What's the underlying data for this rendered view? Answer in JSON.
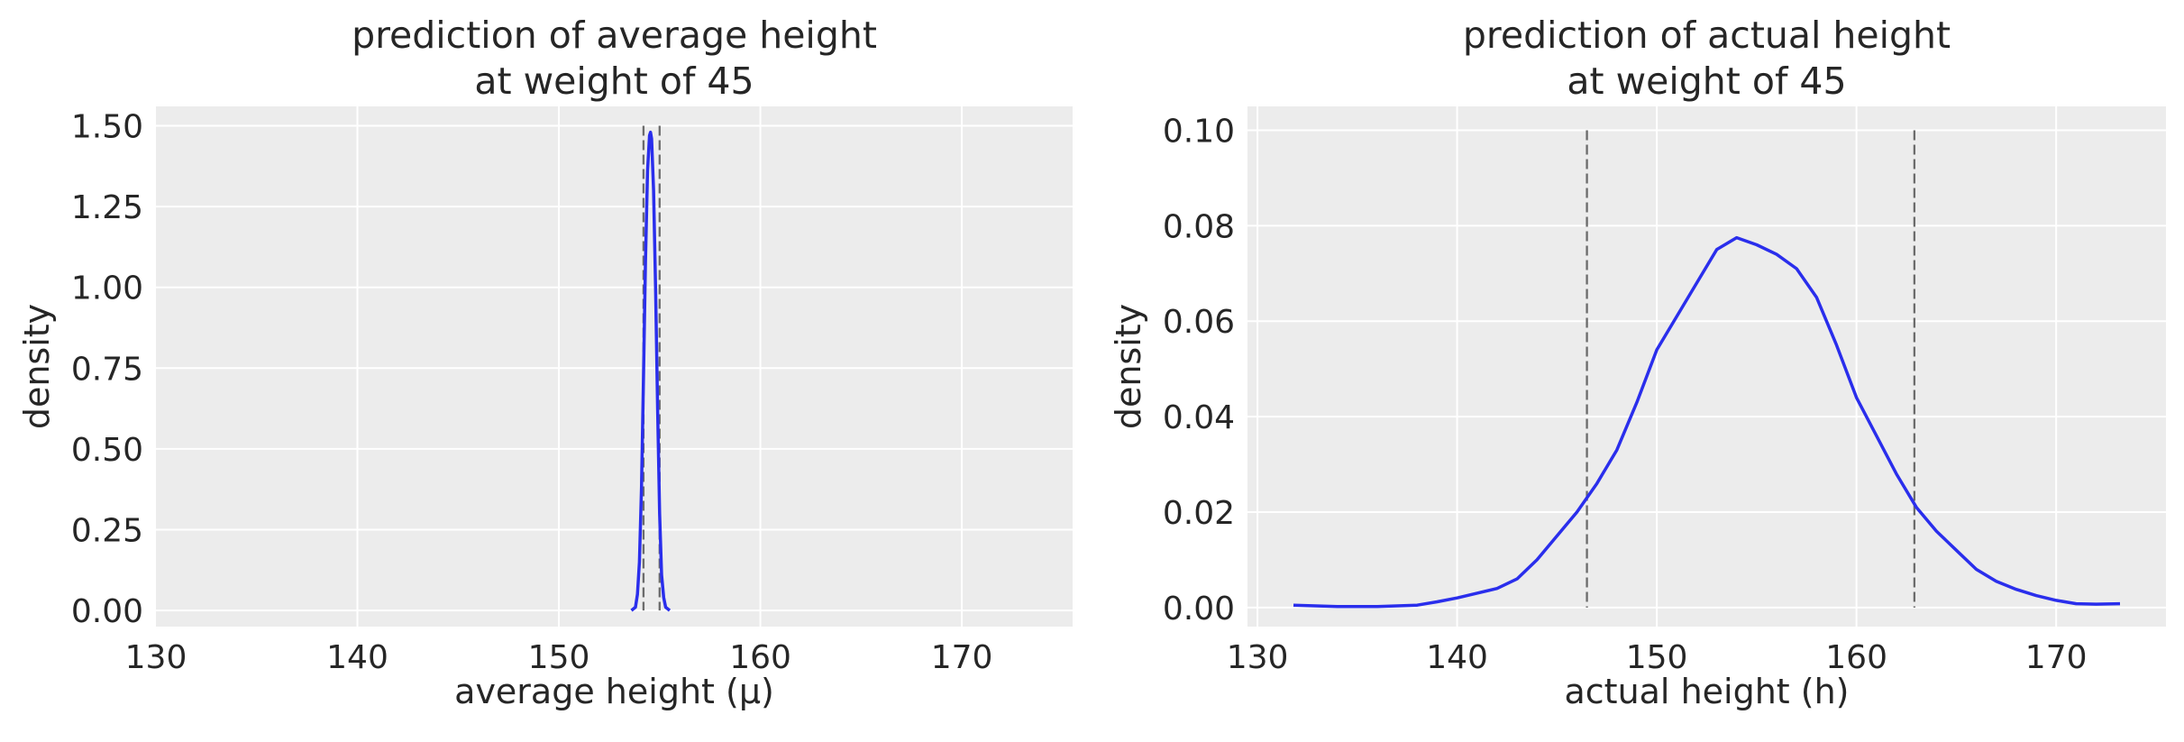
{
  "colors": {
    "curve": "#2a2eec",
    "background": "#ececec",
    "grid": "#ffffff",
    "interval_line": "#6b6b6b",
    "text": "#262626"
  },
  "chart_data": [
    {
      "type": "line",
      "title": [
        "prediction of average height",
        "at weight of 45"
      ],
      "xlabel": "average height (μ)",
      "ylabel": "density",
      "xlim": [
        130,
        175.5
      ],
      "ylim": [
        -0.05,
        1.56
      ],
      "xticks": [
        130,
        140,
        150,
        160,
        170
      ],
      "xtick_labels": [
        "130",
        "140",
        "150",
        "160",
        "170"
      ],
      "yticks": [
        0,
        0.25,
        0.5,
        0.75,
        1.0,
        1.25,
        1.5
      ],
      "ytick_labels": [
        "0.00",
        "0.25",
        "0.50",
        "0.75",
        "1.00",
        "1.25",
        "1.50"
      ],
      "grid": true,
      "series": [
        {
          "x": [
            153.6,
            153.8,
            153.9,
            154.0,
            154.1,
            154.2,
            154.3,
            154.4,
            154.5,
            154.55,
            154.6,
            154.7,
            154.8,
            154.9,
            155.0,
            155.1,
            155.2,
            155.3,
            155.5
          ],
          "y": [
            0.0,
            0.01,
            0.05,
            0.15,
            0.38,
            0.72,
            1.08,
            1.36,
            1.47,
            1.48,
            1.46,
            1.3,
            1.0,
            0.62,
            0.3,
            0.11,
            0.04,
            0.01,
            0.0
          ]
        }
      ],
      "interval_lines": [
        154.2,
        155.0
      ]
    },
    {
      "type": "line",
      "title": [
        "prediction of actual height",
        "at weight of 45"
      ],
      "xlabel": "actual height (h)",
      "ylabel": "density",
      "xlim": [
        129.5,
        175.5
      ],
      "ylim": [
        -0.004,
        0.105
      ],
      "xticks": [
        130,
        140,
        150,
        160,
        170
      ],
      "xtick_labels": [
        "130",
        "140",
        "150",
        "160",
        "170"
      ],
      "yticks": [
        0,
        0.02,
        0.04,
        0.06,
        0.08,
        0.1
      ],
      "ytick_labels": [
        "0.00",
        "0.02",
        "0.04",
        "0.06",
        "0.08",
        "0.10"
      ],
      "grid": true,
      "series": [
        {
          "x": [
            131.8,
            134,
            136,
            138,
            139,
            140,
            141,
            142,
            143,
            144,
            145,
            146,
            147,
            148,
            149,
            150,
            151,
            152,
            153,
            154,
            155,
            156,
            157,
            158,
            159,
            160,
            161,
            162,
            163,
            164,
            165,
            166,
            167,
            168,
            169,
            170,
            171,
            172,
            173.2
          ],
          "y": [
            0.0005,
            0.0002,
            0.0002,
            0.0005,
            0.0012,
            0.002,
            0.003,
            0.004,
            0.006,
            0.01,
            0.015,
            0.02,
            0.026,
            0.033,
            0.043,
            0.054,
            0.061,
            0.068,
            0.075,
            0.0775,
            0.076,
            0.074,
            0.071,
            0.065,
            0.055,
            0.044,
            0.036,
            0.028,
            0.021,
            0.016,
            0.012,
            0.008,
            0.0055,
            0.0038,
            0.0025,
            0.0015,
            0.0008,
            0.0007,
            0.0008
          ]
        }
      ],
      "interval_lines": [
        146.5,
        162.9
      ]
    }
  ]
}
